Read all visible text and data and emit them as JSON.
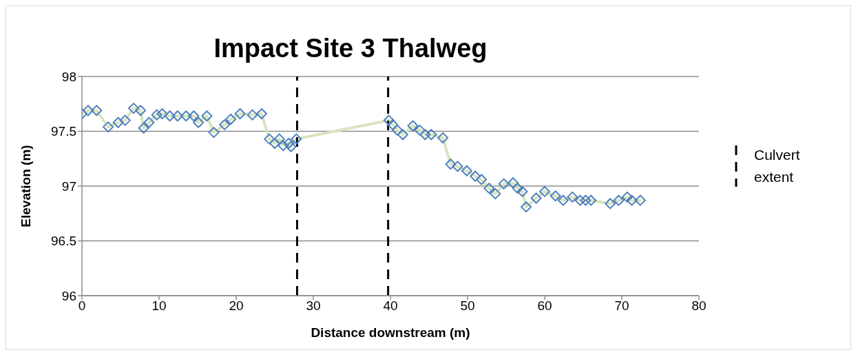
{
  "chart_data": {
    "type": "line",
    "title": "Impact Site 3 Thalweg",
    "xlabel": "Distance downstream (m)",
    "ylabel": "Elevation (m)",
    "x": [
      0,
      0.8,
      1.9,
      3.4,
      4.7,
      5.6,
      6.7,
      7.6,
      8.0,
      8.7,
      9.7,
      10.4,
      11.4,
      12.4,
      13.5,
      14.5,
      15.1,
      16.2,
      17.1,
      18.5,
      19.3,
      20.5,
      22.1,
      23.3,
      24.3,
      25.0,
      25.6,
      26.1,
      26.8,
      27.1,
      27.8,
      39.8,
      40.3,
      40.9,
      41.6,
      42.9,
      43.8,
      44.5,
      45.3,
      46.8,
      47.8,
      48.7,
      49.9,
      51.0,
      51.8,
      52.8,
      53.6,
      54.7,
      55.9,
      56.5,
      57.1,
      57.6,
      58.9,
      60.0,
      61.4,
      62.4,
      63.6,
      64.6,
      65.3,
      66.0,
      68.5,
      69.6,
      70.7,
      71.3,
      72.4
    ],
    "series": [
      {
        "color": "#d7e4bd",
        "values": [
          97.66,
          97.69,
          97.69,
          97.54,
          97.58,
          97.6,
          97.71,
          97.69,
          97.53,
          97.58,
          97.65,
          97.66,
          97.64,
          97.64,
          97.64,
          97.64,
          97.58,
          97.64,
          97.49,
          97.56,
          97.61,
          97.66,
          97.65,
          97.66,
          97.43,
          97.39,
          97.43,
          97.37,
          97.39,
          97.36,
          97.43,
          97.6,
          97.56,
          97.51,
          97.47,
          97.55,
          97.51,
          97.47,
          97.47,
          97.44,
          97.2,
          97.18,
          97.14,
          97.09,
          97.06,
          96.98,
          96.93,
          97.02,
          97.03,
          96.98,
          96.95,
          96.81,
          96.89,
          96.95,
          96.91,
          96.87,
          96.9,
          96.87,
          96.87,
          96.87,
          96.84,
          96.87,
          96.9,
          96.87,
          96.87
        ]
      }
    ],
    "marker": "diamond",
    "line_style": "solid",
    "xlim": [
      0,
      80
    ],
    "xticks": [
      0,
      10,
      20,
      30,
      40,
      50,
      60,
      70,
      80
    ],
    "ylim": [
      96,
      98
    ],
    "yticks": [
      96,
      96.5,
      97,
      97.5,
      98
    ],
    "grid": "y",
    "legend": "right",
    "ref_lines": [
      {
        "axis": "x",
        "value": 27.9,
        "label": "Culvert extent",
        "color": "#000000",
        "line_style": "dashed"
      },
      {
        "axis": "x",
        "value": 39.7,
        "color": "#000000",
        "line_style": "dashed"
      }
    ]
  }
}
